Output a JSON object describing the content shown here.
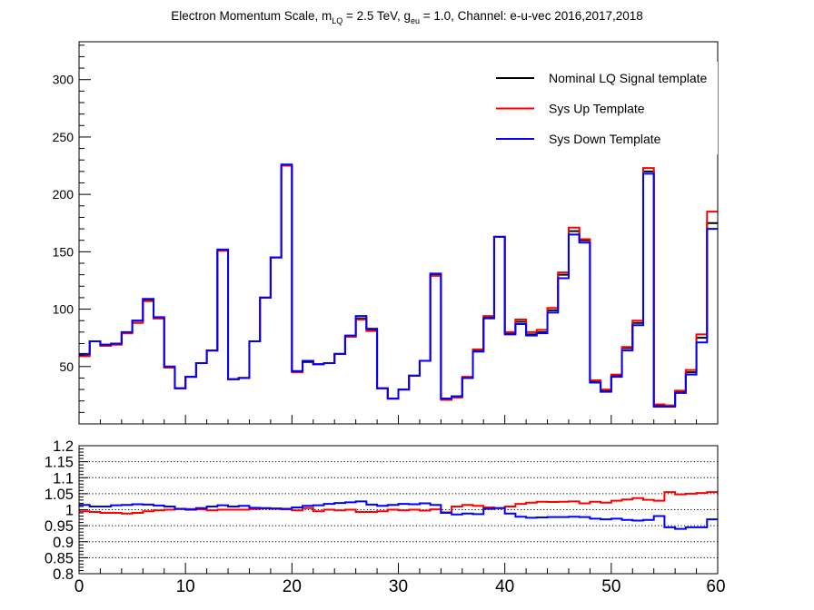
{
  "title": {
    "prefix": "Electron Momentum Scale, m",
    "sub1": "LQ",
    "mid": " = 2.5 TeV, g",
    "sub2": "eu",
    "suffix": " = 1.0, Channel: e-u-vec 2016,2017,2018"
  },
  "colors": {
    "nominal": "#000000",
    "up": "#ff0000",
    "down": "#0000ff",
    "frame": "#000000",
    "grid": "#000000"
  },
  "chart_data": [
    {
      "type": "line",
      "style": "step-histogram",
      "bin_edges_start": 0,
      "bin_width": 1,
      "xlim": [
        0,
        60
      ],
      "ylim": [
        0,
        333
      ],
      "yticks": [
        50,
        100,
        150,
        200,
        250,
        300
      ],
      "ytick_labels": [
        "50",
        "100",
        "150",
        "200",
        "250",
        "300"
      ],
      "legend_position": "top-right",
      "grid": false,
      "series": [
        {
          "name": "Nominal LQ Signal template",
          "color": "#000000",
          "values": [
            60,
            72,
            69,
            70,
            79,
            90,
            108,
            92,
            49,
            31,
            41,
            53,
            64,
            151,
            39,
            40,
            72,
            110,
            145,
            225,
            46,
            54,
            52,
            53,
            61,
            76,
            92,
            82,
            31,
            22,
            30,
            42,
            55,
            130,
            22,
            24,
            40,
            64,
            93,
            163,
            79,
            89,
            78,
            80,
            99,
            130,
            168,
            160,
            37,
            29,
            42,
            66,
            88,
            220,
            16,
            16,
            28,
            45,
            75,
            175
          ]
        },
        {
          "name": "Sys Up Template",
          "color": "#ff0000",
          "values": [
            59,
            72,
            68,
            69,
            79,
            88,
            107,
            92,
            49,
            31,
            41,
            53,
            64,
            151,
            39,
            40,
            72,
            110,
            145,
            225,
            45,
            55,
            52,
            53,
            61,
            76,
            91,
            81,
            31,
            22,
            30,
            42,
            55,
            129,
            21,
            23,
            41,
            65,
            94,
            163,
            80,
            91,
            80,
            82,
            101,
            132,
            171,
            161,
            38,
            30,
            43,
            67,
            90,
            223,
            17,
            16,
            29,
            47,
            78,
            185
          ]
        },
        {
          "name": "Sys Down Template",
          "color": "#0000ff",
          "values": [
            61,
            72,
            69,
            70,
            80,
            90,
            109,
            93,
            50,
            31,
            41,
            53,
            64,
            152,
            39,
            40,
            72,
            110,
            145,
            226,
            46,
            55,
            52,
            53,
            61,
            77,
            94,
            83,
            31,
            22,
            30,
            42,
            55,
            131,
            22,
            24,
            40,
            63,
            92,
            163,
            78,
            87,
            77,
            79,
            97,
            127,
            165,
            158,
            36,
            28,
            41,
            64,
            86,
            218,
            15,
            15,
            27,
            43,
            71,
            170
          ]
        }
      ]
    },
    {
      "type": "line",
      "style": "step-histogram",
      "bin_edges_start": 0,
      "bin_width": 1,
      "xlim": [
        0,
        60
      ],
      "ylim": [
        0.8,
        1.2
      ],
      "xticks": [
        0,
        10,
        20,
        30,
        40,
        50,
        60
      ],
      "xtick_labels": [
        "0",
        "10",
        "20",
        "30",
        "40",
        "50",
        "60"
      ],
      "yticks": [
        0.8,
        0.85,
        0.9,
        0.95,
        1,
        1.05,
        1.1,
        1.15,
        1.2
      ],
      "ytick_labels": [
        "0.8",
        "0.85",
        "0.9",
        "0.95",
        "1",
        "1.05",
        "1.1",
        "1.15",
        "1.2"
      ],
      "grid": true,
      "series": [
        {
          "name": "Sys Up Template",
          "color": "#ff0000",
          "values": [
            0.995,
            0.993,
            0.99,
            0.99,
            0.988,
            0.99,
            0.995,
            0.998,
            1.0,
            1.002,
            1.002,
            1.001,
            0.998,
            1.0,
            1.0,
            1.0,
            1.002,
            1.004,
            1.003,
            1.001,
            0.998,
            1.005,
            0.995,
            1.0,
            0.998,
            1.0,
            0.993,
            0.993,
            0.995,
            1.0,
            0.998,
            1.0,
            0.997,
            1.001,
            0.992,
            1.01,
            1.015,
            1.012,
            1.007,
            1.005,
            1.01,
            1.018,
            1.022,
            1.025,
            1.024,
            1.025,
            1.026,
            1.02,
            1.025,
            1.022,
            1.028,
            1.032,
            1.036,
            1.031,
            1.028,
            1.055,
            1.048,
            1.05,
            1.052,
            1.055
          ]
        },
        {
          "name": "Sys Down Template",
          "color": "#0000ff",
          "values": [
            1.015,
            1.01,
            1.01,
            1.014,
            1.015,
            1.017,
            1.016,
            1.013,
            1.01,
            1.003,
            1.0,
            1.005,
            1.01,
            1.014,
            1.01,
            1.012,
            1.006,
            1.005,
            1.004,
            1.003,
            1.007,
            1.012,
            1.014,
            1.018,
            1.021,
            1.023,
            1.026,
            1.016,
            1.012,
            1.015,
            1.018,
            1.017,
            1.02,
            1.015,
            0.99,
            0.985,
            0.988,
            0.986,
            1.003,
            1.005,
            0.988,
            0.978,
            0.975,
            0.976,
            0.977,
            0.977,
            0.978,
            0.977,
            0.972,
            0.97,
            0.972,
            0.968,
            0.966,
            0.968,
            0.98,
            0.945,
            0.94,
            0.945,
            0.945,
            0.97
          ]
        }
      ]
    }
  ]
}
